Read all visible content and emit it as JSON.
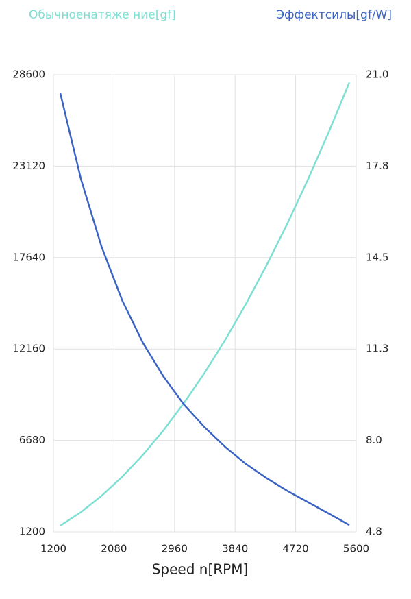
{
  "chart_data": {
    "type": "line",
    "x_label": "Speed n[RPM]",
    "x": [
      1300,
      1600,
      1900,
      2200,
      2500,
      2800,
      3100,
      3400,
      3700,
      4000,
      4300,
      4600,
      4900,
      5200,
      5500
    ],
    "series": [
      {
        "name": "Обычноенатяже ние[gf]",
        "color": "#7ddfd3",
        "axis": "y",
        "values": [
          1570,
          2380,
          3360,
          4500,
          5810,
          7290,
          8940,
          10750,
          12730,
          14880,
          17200,
          19680,
          22330,
          25150,
          28130
        ]
      },
      {
        "name": "Эффектсилы[gf/W]",
        "color": "#3a63c4",
        "axis": "y2",
        "values": [
          20.34,
          17.3,
          14.9,
          13.0,
          11.5,
          10.3,
          9.3,
          8.5,
          7.8,
          7.2,
          6.7,
          6.25,
          5.85,
          5.45,
          5.04
        ]
      }
    ],
    "xlim": [
      1200,
      5600
    ],
    "xticks": [
      1200,
      2080,
      2960,
      3840,
      4720,
      5600
    ],
    "ylim": [
      1200,
      28600
    ],
    "yticks": [
      1200,
      6680,
      12160,
      17640,
      23120,
      28600
    ],
    "y2lim": [
      4.8,
      21
    ],
    "y2ticks": [
      4.8,
      {
        "value": 8.04,
        "label": "8.0"
      },
      {
        "value": 11.28,
        "label": "11.3"
      },
      {
        "value": 14.52,
        "label": "14.5"
      },
      {
        "value": 17.76,
        "label": "17.8"
      },
      {
        "value": 21,
        "label": "21.0"
      }
    ],
    "grid": true
  }
}
